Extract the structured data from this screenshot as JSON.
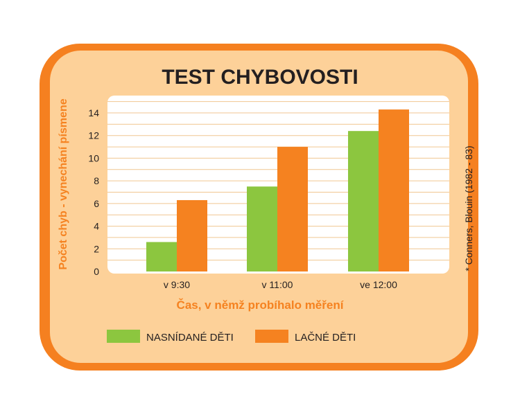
{
  "colors": {
    "outer_frame": "#f58020",
    "panel_bg": "#fdd199",
    "plot_bg": "#ffffff",
    "grid": "#f0c690",
    "series_1": "#8cc63f",
    "series_2": "#f58220",
    "title": "#231f20",
    "axis_label": "#f58220",
    "tick": "#231f20"
  },
  "chart_data": {
    "type": "bar",
    "title": "TEST CHYBOVOSTI",
    "xlabel": "Čas, v němž probíhalo měření",
    "ylabel": "Počet chyb - vynechání písmene",
    "source_note": "* Conners, Blouin (1982 - 83)",
    "categories": [
      "v 9:30",
      "v 11:00",
      "ve 12:00"
    ],
    "series": [
      {
        "name": "NASNÍDANÉ DĚTI",
        "values": [
          2.6,
          7.5,
          12.4
        ]
      },
      {
        "name": "LAČNÉ DĚTI",
        "values": [
          6.3,
          11.0,
          14.3
        ]
      }
    ],
    "yticks": [
      0,
      2,
      4,
      6,
      8,
      10,
      12,
      14
    ],
    "ylim": [
      0,
      15.5
    ],
    "grid": true,
    "legend_position": "bottom"
  }
}
